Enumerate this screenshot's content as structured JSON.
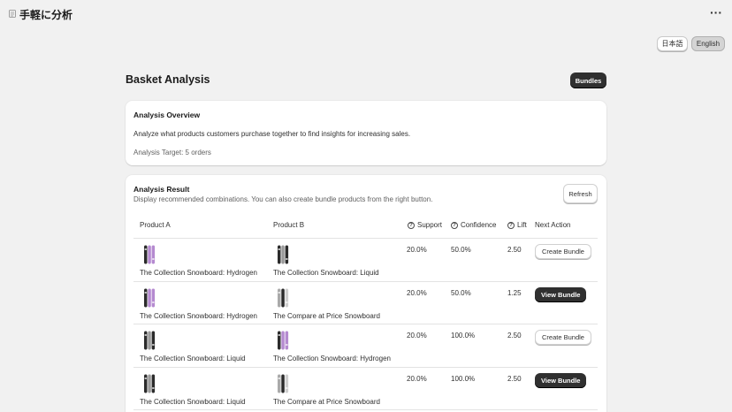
{
  "app": {
    "title": "手軽に分析",
    "more_label": "···"
  },
  "lang": {
    "ja": "日本語",
    "en": "English",
    "selected": "English"
  },
  "page": {
    "title": "Basket Analysis",
    "bundles_label": "Bundles"
  },
  "overview": {
    "title": "Analysis Overview",
    "description": "Analyze what products customers purchase together to find insights for increasing sales.",
    "target": "Analysis Target: 5 orders"
  },
  "result": {
    "title": "Analysis Result",
    "description": "Display recommended combinations. You can also create bundle products from the right button.",
    "refresh_label": "Refresh",
    "columns": {
      "product_a": "Product A",
      "product_b": "Product B",
      "support": "Support",
      "confidence": "Confidence",
      "lift": "Lift",
      "next_action": "Next Action"
    },
    "rows": [
      {
        "product_a": "The Collection Snowboard: Hydrogen",
        "product_a_style": "hydrogen",
        "product_b": "The Collection Snowboard: Liquid",
        "product_b_style": "liquid",
        "support": "20.0%",
        "confidence": "50.0%",
        "lift": "2.50",
        "action": "Create Bundle",
        "action_kind": "create"
      },
      {
        "product_a": "The Collection Snowboard: Hydrogen",
        "product_a_style": "hydrogen",
        "product_b": "The Compare at Price Snowboard",
        "product_b_style": "compare",
        "support": "20.0%",
        "confidence": "50.0%",
        "lift": "1.25",
        "action": "View Bundle",
        "action_kind": "view"
      },
      {
        "product_a": "The Collection Snowboard: Liquid",
        "product_a_style": "liquid",
        "product_b": "The Collection Snowboard: Hydrogen",
        "product_b_style": "hydrogen",
        "support": "20.0%",
        "confidence": "100.0%",
        "lift": "2.50",
        "action": "Create Bundle",
        "action_kind": "create"
      },
      {
        "product_a": "The Collection Snowboard: Liquid",
        "product_a_style": "liquid",
        "product_b": "The Compare at Price Snowboard",
        "product_b_style": "compare",
        "support": "20.0%",
        "confidence": "100.0%",
        "lift": "2.50",
        "action": "View Bundle",
        "action_kind": "view"
      }
    ]
  },
  "colors": {
    "primary_button": "#303030",
    "background": "#f1f1f1",
    "card": "#ffffff",
    "snowboard_purple": "#b58ad0",
    "snowboard_dark": "#2b2b2b"
  }
}
